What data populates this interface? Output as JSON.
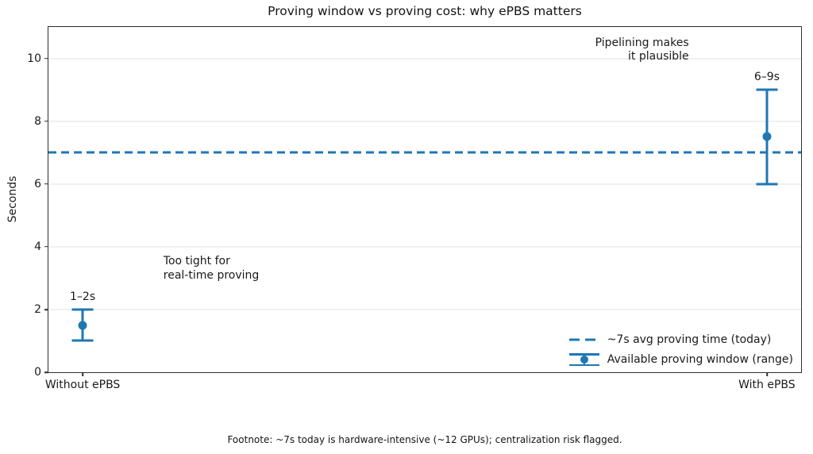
{
  "chart_data": {
    "type": "scatter",
    "title": "Proving window vs proving cost: why ePBS matters",
    "ylabel": "Seconds",
    "xlabel": "",
    "ylim": [
      0,
      11
    ],
    "yticks": [
      0,
      2,
      4,
      6,
      8,
      10
    ],
    "xlim": [
      -0.05,
      1.05
    ],
    "categories": [
      "Without ePBS",
      "With ePBS"
    ],
    "category_x": [
      0,
      1
    ],
    "grid": "horizontal",
    "grid_color": "#e0e0e0",
    "accent_color": "#1f77b4",
    "series": [
      {
        "name": "Available proving window (range)",
        "points": [
          {
            "category": "Without ePBS",
            "x": 0,
            "center": 1.5,
            "low": 1,
            "high": 2,
            "range_label": "1–2s"
          },
          {
            "category": "With ePBS",
            "x": 1,
            "center": 7.5,
            "low": 6,
            "high": 9,
            "range_label": "6–9s"
          }
        ]
      }
    ],
    "reference_line": {
      "y": 7,
      "style": "dashed",
      "color": "#1f77b4"
    },
    "annotations": [
      {
        "text": "Too tight for\nreal-time proving",
        "x": 0.118,
        "y": 3.73,
        "ha": "left",
        "va": "top"
      },
      {
        "text": "Pipelining makes\nit plausible",
        "x": 0.886,
        "y": 10.7,
        "ha": "right",
        "va": "top"
      }
    ],
    "legend": {
      "position": "lower right",
      "frame": false,
      "entries": [
        {
          "type": "dash-line",
          "label": "~7s avg proving time (today)"
        },
        {
          "type": "errorbar",
          "label": "Available proving window (range)"
        }
      ]
    },
    "footnote": "Footnote: ~7s today is hardware-intensive (~12 GPUs); centralization risk flagged."
  }
}
